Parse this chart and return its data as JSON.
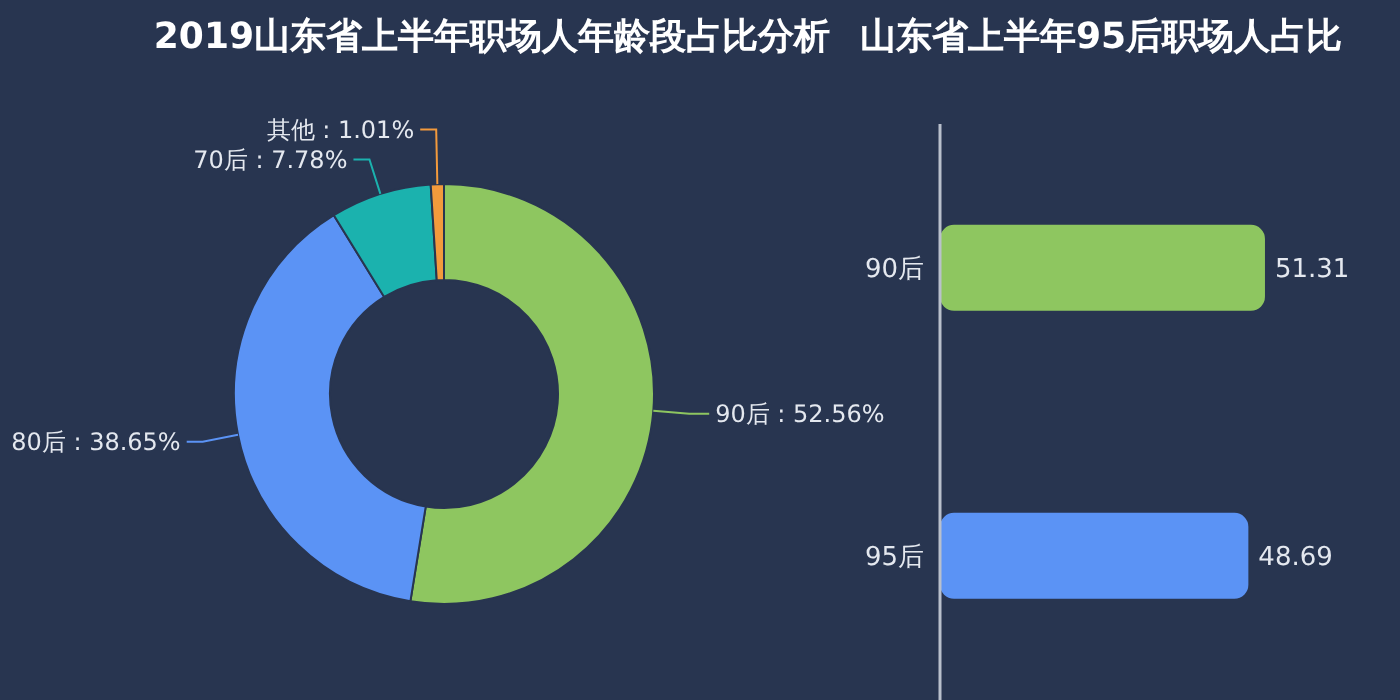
{
  "chart_data": [
    {
      "type": "donut",
      "title": "2019山东省上半年职场人年龄段占比分析",
      "categories": [
        "90后",
        "80后",
        "70后",
        "其他"
      ],
      "values": [
        52.56,
        38.65,
        7.78,
        1.01
      ],
      "value_labels": [
        "52.56%",
        "38.65%",
        "7.78%",
        "1.01%"
      ],
      "colors": [
        "#8ec660",
        "#5b93f5",
        "#1bb2ae",
        "#f39a3c"
      ]
    },
    {
      "type": "bar",
      "orientation": "horizontal",
      "title": "山东省上半年95后职场人占比",
      "categories": [
        "90后",
        "95后"
      ],
      "values": [
        51.31,
        48.69
      ],
      "colors": [
        "#8ec660",
        "#5b93f5"
      ],
      "data_labels": true,
      "tick_labels": "y"
    }
  ]
}
